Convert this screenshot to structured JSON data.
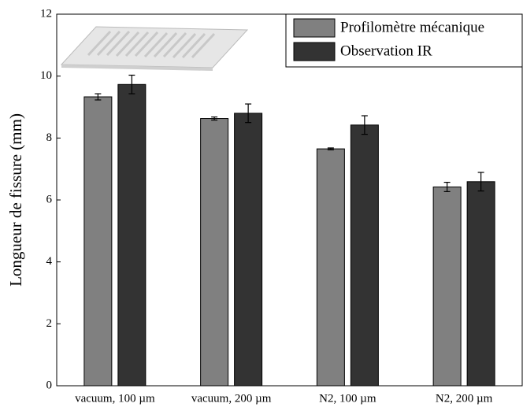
{
  "chart_data": {
    "type": "bar",
    "y_label": "Longueur de fissure (mm)",
    "categories": [
      "vacuum, 100 µm",
      "vacuum, 200 µm",
      "N2, 100 µm",
      "N2, 200 µm"
    ],
    "series": [
      {
        "name": "Profilomètre mécanique",
        "color": "#808080",
        "values": [
          9.33,
          8.63,
          7.65,
          6.42
        ],
        "errors": [
          0.1,
          0.05,
          0.03,
          0.15
        ]
      },
      {
        "name": "Observation IR",
        "color": "#333333",
        "values": [
          9.73,
          8.8,
          8.42,
          6.59
        ],
        "errors": [
          0.3,
          0.3,
          0.3,
          0.3
        ]
      }
    ],
    "ylim": [
      0,
      12
    ],
    "yticks": [
      0,
      2,
      4,
      6,
      8,
      10,
      12
    ]
  }
}
